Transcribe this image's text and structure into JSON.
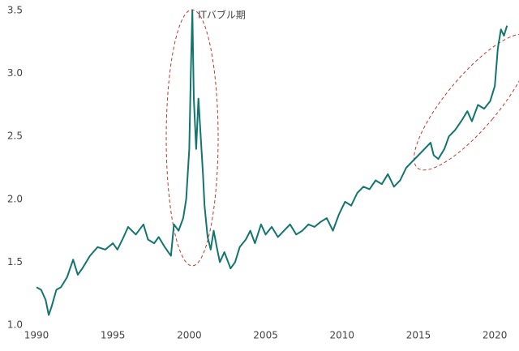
{
  "chart_data": {
    "type": "line",
    "annotation": "ITバブル期",
    "xlim": [
      1990,
      2021
    ],
    "xticks": [
      1990,
      1995,
      2000,
      2005,
      2010,
      2015,
      2020
    ],
    "ylim": [
      1.0,
      3.5
    ],
    "yticks": [
      {
        "value": 1.0,
        "label": "1.0"
      },
      1.5,
      {
        "value": 2.0,
        "label": "2.0"
      },
      2.5,
      {
        "value": 3.0,
        "label": "3.0"
      },
      3.5
    ],
    "color": "#13756f",
    "x": [
      1990.0,
      1990.3,
      1990.6,
      1990.8,
      1991.0,
      1991.3,
      1991.6,
      1992.0,
      1992.4,
      1992.7,
      1993.0,
      1993.5,
      1994.0,
      1994.5,
      1995.0,
      1995.3,
      1995.7,
      1996.0,
      1996.5,
      1997.0,
      1997.3,
      1997.7,
      1998.0,
      1998.4,
      1998.8,
      1999.0,
      1999.3,
      1999.6,
      1999.8,
      2000.0,
      2000.1,
      2000.2,
      2000.3,
      2000.45,
      2000.6,
      2000.75,
      2000.9,
      2001.0,
      2001.2,
      2001.4,
      2001.6,
      2001.8,
      2002.0,
      2002.3,
      2002.7,
      2003.0,
      2003.3,
      2003.7,
      2004.0,
      2004.3,
      2004.7,
      2005.0,
      2005.4,
      2005.8,
      2006.2,
      2006.6,
      2007.0,
      2007.4,
      2007.8,
      2008.2,
      2008.6,
      2009.0,
      2009.4,
      2009.8,
      2010.2,
      2010.6,
      2011.0,
      2011.4,
      2011.8,
      2012.2,
      2012.6,
      2013.0,
      2013.4,
      2013.8,
      2014.2,
      2014.6,
      2015.0,
      2015.4,
      2015.8,
      2016.0,
      2016.3,
      2016.7,
      2017.0,
      2017.4,
      2017.8,
      2018.2,
      2018.5,
      2018.9,
      2019.3,
      2019.7,
      2020.0,
      2020.2,
      2020.4,
      2020.6,
      2020.8
    ],
    "values": [
      1.3,
      1.28,
      1.2,
      1.08,
      1.15,
      1.28,
      1.3,
      1.38,
      1.52,
      1.4,
      1.45,
      1.55,
      1.62,
      1.6,
      1.65,
      1.6,
      1.7,
      1.78,
      1.72,
      1.8,
      1.68,
      1.65,
      1.7,
      1.62,
      1.55,
      1.8,
      1.75,
      1.85,
      2.0,
      2.4,
      3.0,
      3.5,
      2.8,
      2.4,
      2.8,
      2.5,
      2.2,
      1.95,
      1.7,
      1.6,
      1.75,
      1.62,
      1.5,
      1.58,
      1.45,
      1.5,
      1.62,
      1.68,
      1.75,
      1.65,
      1.8,
      1.72,
      1.78,
      1.7,
      1.75,
      1.8,
      1.72,
      1.75,
      1.8,
      1.78,
      1.82,
      1.85,
      1.75,
      1.88,
      1.98,
      1.95,
      2.05,
      2.1,
      2.08,
      2.15,
      2.12,
      2.2,
      2.1,
      2.15,
      2.25,
      2.3,
      2.35,
      2.4,
      2.45,
      2.35,
      2.32,
      2.4,
      2.5,
      2.55,
      2.62,
      2.7,
      2.62,
      2.75,
      2.72,
      2.78,
      2.9,
      3.2,
      3.35,
      3.3,
      3.38
    ]
  }
}
